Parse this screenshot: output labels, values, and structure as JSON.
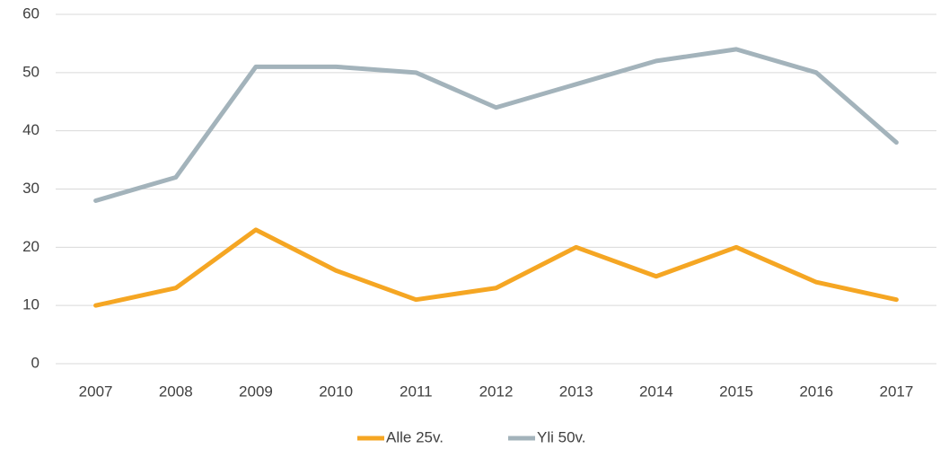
{
  "chart_data": {
    "type": "line",
    "categories": [
      "2007",
      "2008",
      "2009",
      "2010",
      "2011",
      "2012",
      "2013",
      "2014",
      "2015",
      "2016",
      "2017"
    ],
    "series": [
      {
        "name": "Alle 25v.",
        "color": "#f5a623",
        "values": [
          10,
          13,
          23,
          16,
          11,
          13,
          20,
          15,
          20,
          14,
          11
        ]
      },
      {
        "name": "Yli 50v.",
        "color": "#a3b3bb",
        "values": [
          28,
          32,
          51,
          51,
          50,
          44,
          48,
          52,
          54,
          50,
          38
        ]
      }
    ],
    "ylim": [
      0,
      60
    ],
    "yticks": [
      0,
      10,
      20,
      30,
      40,
      50,
      60
    ],
    "grid": true,
    "legend": "bottom"
  }
}
